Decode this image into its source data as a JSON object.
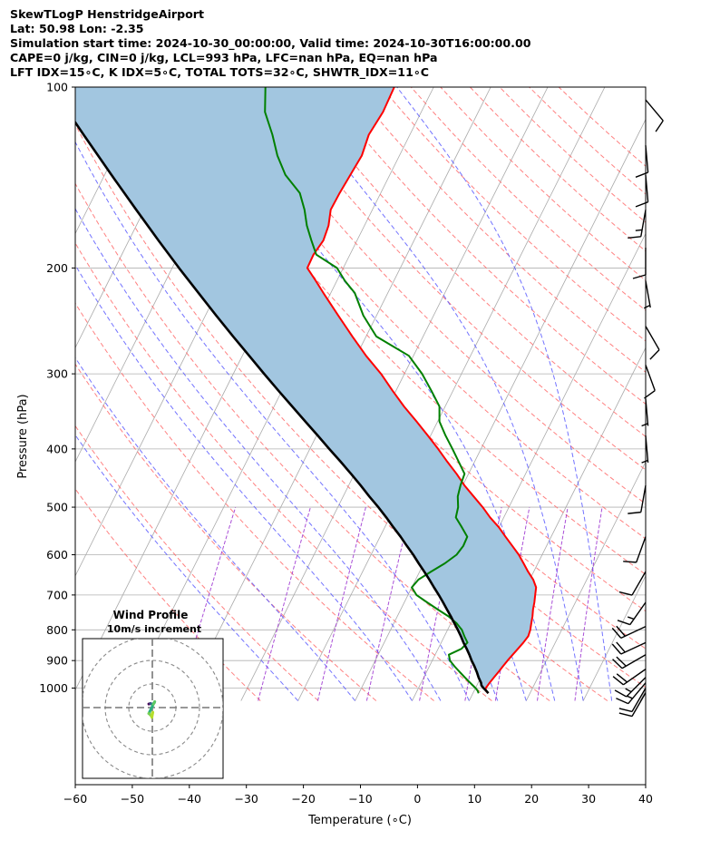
{
  "header": {
    "lines": [
      "SkewTLogP HenstridgeAirport",
      "Lat: 50.98   Lon: -2.35",
      "Simulation start time: 2024-10-30_00:00:00, Valid time: 2024-10-30T16:00:00.00",
      "CAPE=0 j/kg, CIN=0 j/kg, LCL=993 hPa, LFC=nan hPa, EQ=nan hPa",
      "LFT IDX=15∘C, K IDX=5∘C, TOTAL TOTS=32∘C, SHWTR_IDX=11∘C"
    ]
  },
  "chart_data": {
    "type": "line",
    "subtype": "skew-t log-p",
    "xlabel": "Temperature (∘C)",
    "ylabel": "Pressure (hPa)",
    "xlim": [
      -60,
      40
    ],
    "ylim": [
      1050,
      100
    ],
    "x_ticks": [
      "−60",
      "−50",
      "−40",
      "−30",
      "−20",
      "−10",
      "0",
      "10",
      "20",
      "30",
      "40"
    ],
    "x_tick_values": [
      -60,
      -50,
      -40,
      -30,
      -20,
      -10,
      0,
      10,
      20,
      30,
      40
    ],
    "y_ticks": [
      "100",
      "200",
      "300",
      "400",
      "500",
      "600",
      "700",
      "800",
      "900",
      "1000"
    ],
    "y_tick_values": [
      100,
      200,
      300,
      400,
      500,
      600,
      700,
      800,
      900,
      1000
    ],
    "colors": {
      "temperature": "#ff0000",
      "dewpoint": "#008000",
      "parcel": "#000000",
      "shading": "#a2c6e0",
      "dry_adiabat": "#ff6b6b",
      "moist_adiabat": "#5b5bff",
      "mixing_ratio": "#9b30d0",
      "isotherm": "#aaaaaa"
    },
    "series": [
      {
        "key": "temperature",
        "p": [
          1020,
          1010,
          1000,
          980,
          960,
          940,
          920,
          900,
          880,
          860,
          840,
          820,
          800,
          780,
          760,
          740,
          720,
          700,
          680,
          660,
          640,
          620,
          600,
          580,
          560,
          540,
          520,
          500,
          480,
          460,
          440,
          420,
          400,
          380,
          360,
          340,
          320,
          300,
          280,
          260,
          240,
          220,
          210,
          200,
          190,
          180,
          170,
          160,
          150,
          140,
          130,
          120,
          110,
          100
        ],
        "t": [
          12.7,
          12.0,
          11.8,
          12.0,
          12.3,
          12.6,
          12.9,
          13.2,
          13.6,
          14.0,
          14.4,
          14.7,
          14.5,
          14.1,
          13.7,
          13.2,
          12.8,
          12.3,
          11.8,
          10.6,
          9.0,
          7.5,
          5.9,
          4.0,
          2.0,
          0.0,
          -2.4,
          -4.6,
          -7.1,
          -9.7,
          -12.1,
          -14.8,
          -17.5,
          -20.5,
          -23.7,
          -27.2,
          -30.6,
          -34.1,
          -38.3,
          -42.4,
          -46.7,
          -51.3,
          -53.7,
          -56.3,
          -56.4,
          -55.9,
          -56.3,
          -57.3,
          -57.2,
          -56.9,
          -56.6,
          -57.2,
          -56.7,
          -56.9
        ]
      },
      {
        "key": "dewpoint",
        "p": [
          1020,
          1010,
          1000,
          980,
          960,
          940,
          920,
          900,
          880,
          860,
          840,
          820,
          800,
          780,
          760,
          740,
          720,
          700,
          680,
          660,
          640,
          620,
          600,
          580,
          560,
          540,
          520,
          500,
          480,
          460,
          440,
          420,
          400,
          380,
          360,
          340,
          320,
          300,
          280,
          260,
          240,
          220,
          210,
          200,
          190,
          180,
          170,
          160,
          150,
          140,
          130,
          120,
          110,
          100
        ],
        "t": [
          11.0,
          10.6,
          10.0,
          8.6,
          7.2,
          5.8,
          4.4,
          3.1,
          2.4,
          4.1,
          4.6,
          3.5,
          2.5,
          1.0,
          -1.0,
          -3.5,
          -6.0,
          -8.5,
          -10.0,
          -9.5,
          -8.0,
          -6.3,
          -5.0,
          -4.6,
          -4.7,
          -6.5,
          -8.4,
          -8.9,
          -9.9,
          -10.4,
          -10.7,
          -12.8,
          -15.0,
          -17.4,
          -19.7,
          -21.0,
          -23.8,
          -26.9,
          -30.8,
          -38.2,
          -42.3,
          -45.8,
          -48.6,
          -51.1,
          -55.9,
          -58.0,
          -60.1,
          -61.9,
          -64.2,
          -68.3,
          -71.4,
          -74.1,
          -77.4,
          -79.5
        ]
      },
      {
        "key": "parcel",
        "p": [
          1020,
          1010,
          1000,
          990,
          980,
          960,
          940,
          920,
          900,
          880,
          860,
          840,
          820,
          800,
          780,
          760,
          740,
          720,
          700,
          680,
          660,
          640,
          620,
          600,
          580,
          560,
          540,
          520,
          500,
          480,
          460,
          440,
          420,
          400,
          380,
          360,
          340,
          320,
          300,
          280,
          260,
          240,
          220,
          200,
          180,
          160,
          140,
          120,
          110,
          100
        ],
        "t": [
          12.7,
          12.1,
          11.4,
          10.8,
          10.5,
          9.6,
          8.8,
          7.9,
          6.9,
          6.0,
          5.0,
          3.9,
          2.9,
          1.8,
          0.6,
          -0.6,
          -1.9,
          -3.2,
          -4.6,
          -6.1,
          -7.6,
          -9.2,
          -10.9,
          -12.6,
          -14.5,
          -16.4,
          -18.5,
          -20.6,
          -22.9,
          -25.4,
          -27.9,
          -30.6,
          -33.5,
          -36.6,
          -39.8,
          -43.2,
          -46.8,
          -50.6,
          -54.6,
          -58.8,
          -63.3,
          -68.1,
          -73.2,
          -78.8,
          -84.8,
          -91.4,
          -98.8,
          -107.2,
          -111.9,
          -117.0
        ]
      }
    ],
    "shading": "region between temperature and parcel",
    "wind_barbs": [
      {
        "p": 1018,
        "speed_kt": 10,
        "dir_deg": 210
      },
      {
        "p": 1000,
        "speed_kt": 10,
        "dir_deg": 210
      },
      {
        "p": 980,
        "speed_kt": 15,
        "dir_deg": 220
      },
      {
        "p": 960,
        "speed_kt": 15,
        "dir_deg": 225
      },
      {
        "p": 930,
        "speed_kt": 20,
        "dir_deg": 235
      },
      {
        "p": 880,
        "speed_kt": 20,
        "dir_deg": 240
      },
      {
        "p": 840,
        "speed_kt": 20,
        "dir_deg": 245
      },
      {
        "p": 790,
        "speed_kt": 20,
        "dir_deg": 245
      },
      {
        "p": 720,
        "speed_kt": 15,
        "dir_deg": 215
      },
      {
        "p": 640,
        "speed_kt": 10,
        "dir_deg": 210
      },
      {
        "p": 560,
        "speed_kt": 10,
        "dir_deg": 200
      },
      {
        "p": 460,
        "speed_kt": 10,
        "dir_deg": 190
      },
      {
        "p": 380,
        "speed_kt": 5,
        "dir_deg": 175
      },
      {
        "p": 330,
        "speed_kt": 5,
        "dir_deg": 175
      },
      {
        "p": 290,
        "speed_kt": 10,
        "dir_deg": 160
      },
      {
        "p": 250,
        "speed_kt": 10,
        "dir_deg": 150
      },
      {
        "p": 210,
        "speed_kt": 5,
        "dir_deg": 170
      },
      {
        "p": 185,
        "speed_kt": 10,
        "dir_deg": 180
      },
      {
        "p": 160,
        "speed_kt": 15,
        "dir_deg": 190
      },
      {
        "p": 140,
        "speed_kt": 10,
        "dir_deg": 175
      },
      {
        "p": 125,
        "speed_kt": 10,
        "dir_deg": 175
      },
      {
        "p": 105,
        "speed_kt": 10,
        "dir_deg": 140
      }
    ],
    "inset": {
      "title": "Wind Profile",
      "subtitle": "10m/s increment",
      "rings_mps": [
        10,
        20,
        30
      ],
      "hodograph": [
        {
          "u": -1.5,
          "v": 1.5,
          "color": "#440154"
        },
        {
          "u": -0.8,
          "v": 1.7,
          "color": "#3b528b"
        },
        {
          "u": 0.0,
          "v": 1.4,
          "color": "#21918c"
        },
        {
          "u": 0.8,
          "v": 2.0,
          "color": "#2ab07f"
        },
        {
          "u": 1.0,
          "v": 2.5,
          "color": "#5ec962"
        },
        {
          "u": 0.0,
          "v": 0.5,
          "color": "#2ab07f"
        },
        {
          "u": -1.5,
          "v": -2.5,
          "color": "#7ad151"
        },
        {
          "u": -0.5,
          "v": -3.5,
          "color": "#a5db36"
        },
        {
          "u": 0.2,
          "v": -2.0,
          "color": "#b5de2b"
        },
        {
          "u": -0.2,
          "v": -4.2,
          "color": "#7ad151"
        }
      ]
    }
  }
}
